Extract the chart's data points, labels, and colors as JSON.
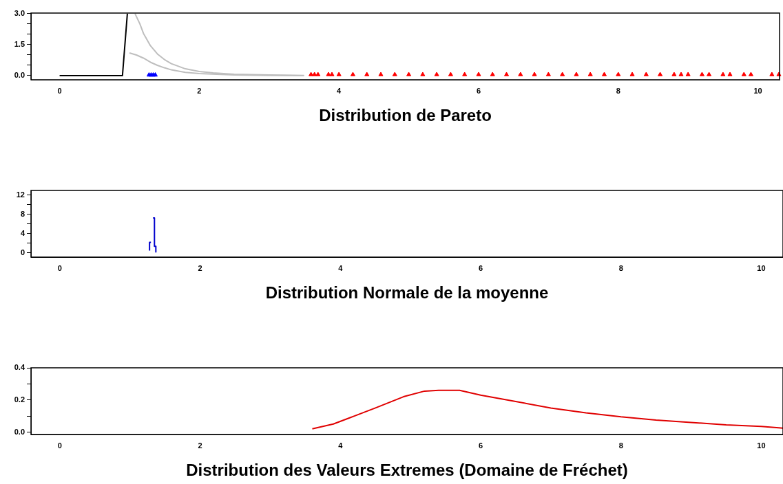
{
  "chart_data": [
    {
      "type": "line",
      "xlabel": "Distribution de Pareto",
      "xlim": [
        -0.41,
        10.31
      ],
      "xticks": [
        0,
        2,
        4,
        6,
        8,
        10
      ],
      "ylim": [
        -0.2,
        3.03
      ],
      "yticks": [
        {
          "value": 0,
          "label": "0.0"
        },
        {
          "value": 0.5,
          "label": null
        },
        {
          "value": 1,
          "label": null
        },
        {
          "value": 1.5,
          "label": "1.5"
        },
        {
          "value": 2,
          "label": null
        },
        {
          "value": 2.5,
          "label": null
        },
        {
          "value": 3,
          "label": "3.0"
        }
      ],
      "grid": false,
      "legend": false,
      "marker": "none",
      "line_style": "solid",
      "series": [
        {
          "color": "#000000",
          "x": [
            0,
            0.9,
            0.97
          ],
          "values": [
            0,
            0,
            3.0
          ]
        },
        {
          "color": "#bebebe",
          "x": [
            1.08,
            1.15,
            1.2,
            1.3,
            1.4,
            1.5,
            1.6,
            1.8,
            2.0,
            2.2,
            2.5,
            3.0,
            3.5
          ],
          "values": [
            3.0,
            2.5,
            2.05,
            1.45,
            1.05,
            0.78,
            0.58,
            0.33,
            0.2,
            0.13,
            0.07,
            0.03,
            0.01
          ]
        },
        {
          "color": "#bebebe",
          "x": [
            1.0,
            1.1,
            1.2,
            1.3,
            1.4,
            1.5,
            1.6,
            1.8,
            2.0,
            2.5,
            3.0,
            3.5
          ],
          "values": [
            1.1,
            1.0,
            0.85,
            0.65,
            0.5,
            0.38,
            0.28,
            0.16,
            0.1,
            0.03,
            0.01,
            0.0
          ]
        },
        {
          "type": "scatter",
          "marker": "triangle",
          "color": "#0000ff",
          "x": [
            1.28,
            1.31,
            1.34,
            1.37
          ],
          "values": [
            0.03,
            0.03,
            0.03,
            0.03
          ]
        },
        {
          "type": "scatter",
          "marker": "triangle",
          "color": "#ff0000",
          "x": [
            3.6,
            3.65,
            3.7,
            3.85,
            3.9,
            4.0,
            4.2,
            4.4,
            4.6,
            4.8,
            5.0,
            5.2,
            5.4,
            5.6,
            5.8,
            6.0,
            6.2,
            6.4,
            6.6,
            6.8,
            7.0,
            7.2,
            7.4,
            7.6,
            7.8,
            8.0,
            8.2,
            8.4,
            8.6,
            8.8,
            8.9,
            9.0,
            9.2,
            9.3,
            9.5,
            9.6,
            9.8,
            9.9,
            10.2,
            10.3
          ],
          "values": [
            0.05,
            0.05,
            0.05,
            0.05,
            0.05,
            0.05,
            0.05,
            0.05,
            0.05,
            0.05,
            0.05,
            0.05,
            0.05,
            0.05,
            0.05,
            0.05,
            0.05,
            0.05,
            0.05,
            0.05,
            0.05,
            0.05,
            0.05,
            0.05,
            0.05,
            0.05,
            0.05,
            0.05,
            0.05,
            0.05,
            0.05,
            0.05,
            0.05,
            0.05,
            0.05,
            0.05,
            0.05,
            0.05,
            0.05,
            0.05
          ]
        }
      ]
    },
    {
      "type": "line",
      "xlabel": "Distribution Normale de la moyenne",
      "xlim": [
        -0.41,
        10.31
      ],
      "xticks": [
        0,
        2,
        4,
        6,
        8,
        10
      ],
      "ylim": [
        -0.86,
        13
      ],
      "yticks": [
        0,
        {
          "value": 2,
          "label": null
        },
        4,
        {
          "value": 6,
          "label": null
        },
        8,
        {
          "value": 10,
          "label": null
        },
        12
      ],
      "grid": false,
      "legend": false,
      "marker": "none",
      "line_style": "solid",
      "series": [
        {
          "color": "#0000cd",
          "x": [
            1.28,
            1.28,
            1.3
          ],
          "values": [
            0.5,
            2.2,
            2.2
          ]
        },
        {
          "color": "#0000cd",
          "x": [
            1.33,
            1.35,
            1.35,
            1.37,
            1.37
          ],
          "values": [
            7.3,
            7.3,
            1.4,
            1.4,
            0.2
          ]
        }
      ]
    },
    {
      "type": "line",
      "xlabel": "Distribution des Valeurs Extremes (Domaine de Fréchet)",
      "xlim": [
        -0.41,
        10.31
      ],
      "xticks": [
        0,
        2,
        4,
        6,
        8,
        10
      ],
      "ylim": [
        -0.015,
        0.4
      ],
      "yticks": [
        {
          "value": 0,
          "label": "0.0"
        },
        {
          "value": 0.1,
          "label": null
        },
        {
          "value": 0.2,
          "label": "0.2"
        },
        {
          "value": 0.3,
          "label": null
        },
        {
          "value": 0.4,
          "label": "0.4"
        }
      ],
      "grid": false,
      "legend": false,
      "marker": "none",
      "line_style": "solid",
      "series": [
        {
          "color": "#e00000",
          "x": [
            3.6,
            3.9,
            4.2,
            4.5,
            4.9,
            5.2,
            5.4,
            5.7,
            6.0,
            6.5,
            7.0,
            7.5,
            8.0,
            8.5,
            9.0,
            9.5,
            10.0,
            10.31
          ],
          "values": [
            0.02,
            0.05,
            0.1,
            0.15,
            0.22,
            0.255,
            0.26,
            0.26,
            0.23,
            0.19,
            0.15,
            0.12,
            0.095,
            0.075,
            0.06,
            0.045,
            0.035,
            0.025
          ]
        }
      ]
    }
  ]
}
